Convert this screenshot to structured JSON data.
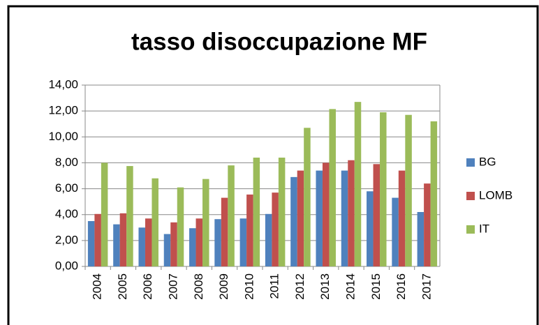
{
  "chart_data": {
    "type": "bar",
    "title": "tasso disoccupazione MF",
    "categories": [
      "2004",
      "2005",
      "2006",
      "2007",
      "2008",
      "2009",
      "2010",
      "2011",
      "2012",
      "2013",
      "2014",
      "2015",
      "2016",
      "2017"
    ],
    "series": [
      {
        "name": "BG",
        "color": "#4f81bd",
        "values": [
          3.5,
          3.25,
          3.0,
          2.5,
          2.95,
          3.65,
          3.7,
          4.05,
          6.9,
          7.4,
          7.4,
          5.8,
          5.3,
          4.2
        ]
      },
      {
        "name": "LOMB",
        "color": "#c0504d",
        "values": [
          4.05,
          4.1,
          3.7,
          3.4,
          3.7,
          5.3,
          5.55,
          5.7,
          7.4,
          8.0,
          8.2,
          7.9,
          7.4,
          6.4
        ]
      },
      {
        "name": "IT",
        "color": "#9bbb59",
        "values": [
          8.0,
          7.75,
          6.8,
          6.1,
          6.75,
          7.8,
          8.4,
          8.4,
          10.7,
          12.15,
          12.7,
          11.9,
          11.7,
          11.2
        ]
      }
    ],
    "ylim": [
      0,
      14
    ],
    "yticks": [
      {
        "value": 0,
        "label": "0,00"
      },
      {
        "value": 2,
        "label": "2,00"
      },
      {
        "value": 4,
        "label": "4,00"
      },
      {
        "value": 6,
        "label": "6,00"
      },
      {
        "value": 8,
        "label": "8,00"
      },
      {
        "value": 10,
        "label": "10,00"
      },
      {
        "value": 12,
        "label": "12,00"
      },
      {
        "value": 14,
        "label": "14,00"
      }
    ],
    "grid": true,
    "legend": "right"
  }
}
